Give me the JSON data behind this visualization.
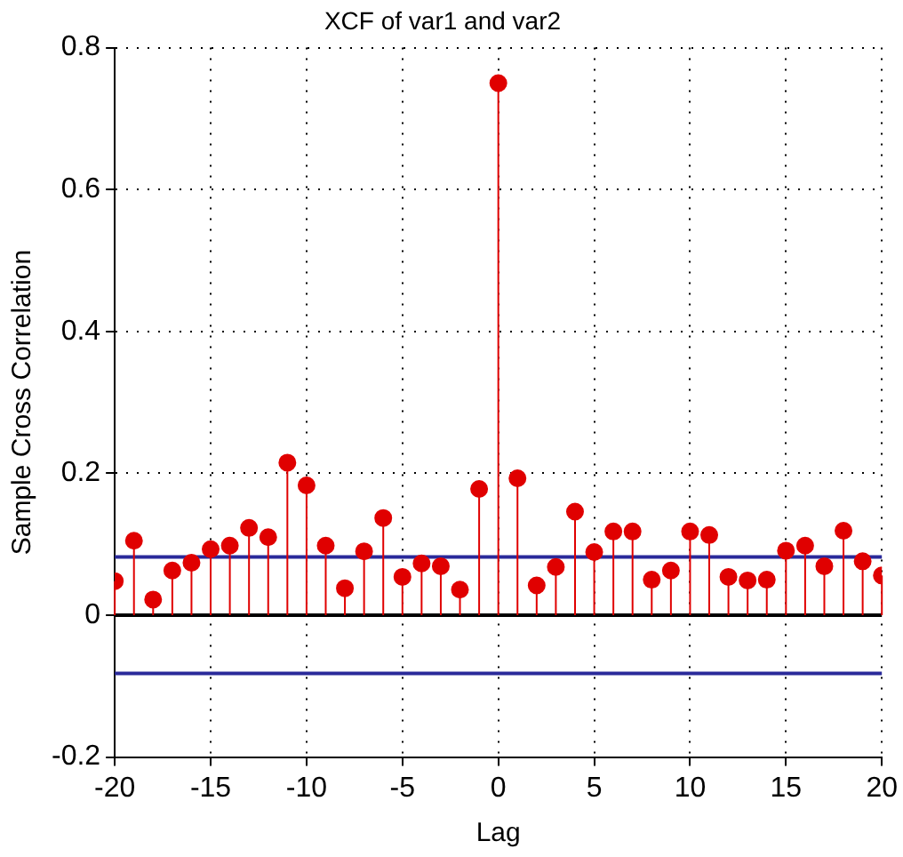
{
  "chart_data": {
    "type": "lollipop",
    "title": "XCF of var1 and var2",
    "xlabel": "Lag",
    "ylabel": "Sample Cross Correlation",
    "x": [
      -20,
      -19,
      -18,
      -17,
      -16,
      -15,
      -14,
      -13,
      -12,
      -11,
      -10,
      -9,
      -8,
      -7,
      -6,
      -5,
      -4,
      -3,
      -2,
      -1,
      0,
      1,
      2,
      3,
      4,
      5,
      6,
      7,
      8,
      9,
      10,
      11,
      12,
      13,
      14,
      15,
      16,
      17,
      18,
      19,
      20
    ],
    "series": [
      {
        "color": "#e00000",
        "values": [
          0.048,
          0.105,
          0.022,
          0.063,
          0.074,
          0.093,
          0.098,
          0.123,
          0.11,
          0.215,
          0.183,
          0.098,
          0.038,
          0.09,
          0.137,
          0.054,
          0.073,
          0.069,
          0.036,
          0.178,
          0.75,
          0.193,
          0.042,
          0.068,
          0.146,
          0.089,
          0.118,
          0.118,
          0.05,
          0.063,
          0.118,
          0.113,
          0.054,
          0.049,
          0.05,
          0.091,
          0.098,
          0.069,
          0.119,
          0.076,
          0.056
        ]
      }
    ],
    "xlim": [
      -20,
      20
    ],
    "xticks": [
      -20,
      -15,
      -10,
      -5,
      0,
      5,
      10,
      15,
      20
    ],
    "ylim": [
      -0.2,
      0.8
    ],
    "yticks": [
      -0.2,
      0,
      0.2,
      0.4,
      0.6,
      0.8
    ],
    "ref_lines": [
      {
        "axis": "y",
        "value": 0,
        "color": "#000000"
      },
      {
        "axis": "y",
        "value": 0.082,
        "color": "#2a2a9a"
      },
      {
        "axis": "y",
        "value": -0.082,
        "color": "#2a2a9a"
      }
    ],
    "grid": true,
    "marker": "circle",
    "legend": false
  }
}
